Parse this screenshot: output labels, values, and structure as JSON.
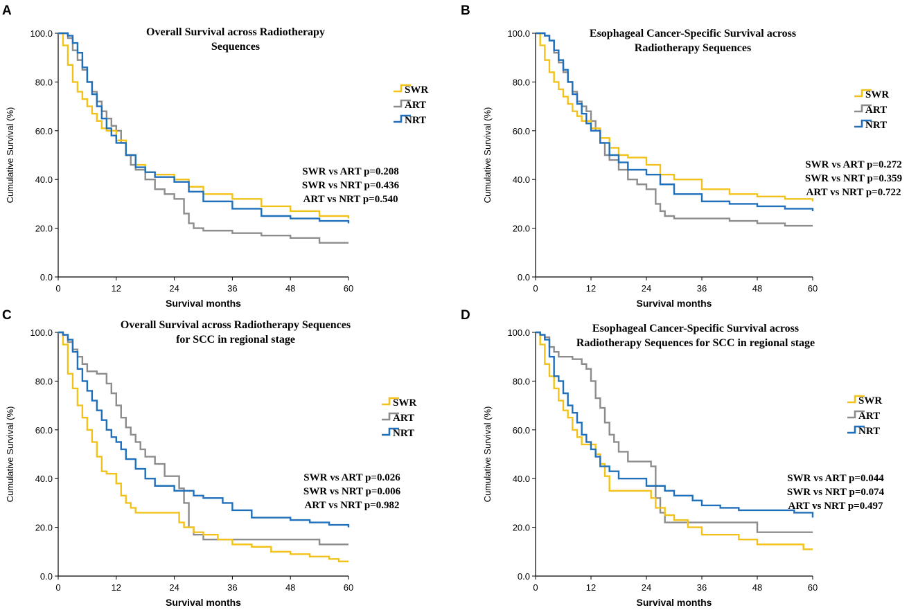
{
  "colors": {
    "SWR": "#f2c21b",
    "ART": "#8c8c8c",
    "NRT": "#1f6fba",
    "axis": "#000000"
  },
  "chart_data": [
    {
      "type": "line",
      "panel": "A",
      "title_lines": [
        "Overall Survival across Radiotherapy",
        "Sequences"
      ],
      "xlabel": "Survival months",
      "ylabel": "Cumulative Survival (%)",
      "xlim": [
        0,
        60
      ],
      "ylim": [
        0,
        100
      ],
      "xticks": [
        "0",
        "12",
        "24",
        "36",
        "48",
        "60"
      ],
      "yticks": [
        "0.0",
        "20.0",
        "40.0",
        "60.0",
        "80.0",
        "100.0"
      ],
      "legend": [
        "SWR",
        "ART",
        "NRT"
      ],
      "pvalues": [
        "SWR vs ART p=0.208",
        "SWR vs NRT p=0.436",
        "ART vs NRT p=0.540"
      ],
      "series": [
        {
          "name": "SWR",
          "x": [
            0,
            1,
            2,
            3,
            4,
            5,
            6,
            7,
            8,
            9,
            10,
            12,
            14,
            16,
            18,
            20,
            24,
            27,
            30,
            36,
            42,
            48,
            54,
            60
          ],
          "y": [
            100,
            95,
            87,
            80,
            76,
            73,
            70,
            67,
            64,
            61,
            60,
            56,
            50,
            46,
            43,
            42,
            40,
            37,
            34,
            32,
            29,
            27,
            25,
            24
          ]
        },
        {
          "name": "ART",
          "x": [
            0,
            1,
            2,
            3,
            4,
            5,
            6,
            7,
            8,
            9,
            10,
            11,
            12,
            13,
            14,
            15,
            16,
            18,
            20,
            22,
            24,
            26,
            27,
            28,
            30,
            36,
            42,
            48,
            54,
            60
          ],
          "y": [
            100,
            100,
            98,
            93,
            89,
            85,
            80,
            76,
            72,
            68,
            65,
            62,
            60,
            55,
            50,
            46,
            44,
            40,
            36,
            34,
            32,
            26,
            22,
            20,
            19,
            18,
            17,
            16,
            14,
            14
          ]
        },
        {
          "name": "NRT",
          "x": [
            0,
            1,
            2,
            3,
            4,
            5,
            6,
            7,
            8,
            9,
            10,
            11,
            12,
            14,
            16,
            18,
            20,
            24,
            27,
            30,
            36,
            42,
            48,
            54,
            60
          ],
          "y": [
            100,
            100,
            99,
            96,
            92,
            86,
            80,
            75,
            70,
            65,
            61,
            58,
            55,
            50,
            45,
            43,
            41,
            39,
            35,
            31,
            28,
            25,
            24,
            23,
            22
          ]
        }
      ]
    },
    {
      "type": "line",
      "panel": "B",
      "title_lines": [
        "Esophageal Cancer-Specific Survival across",
        "Radiotherapy Sequences"
      ],
      "xlabel": "Survival months",
      "ylabel": "Cumulative Survival (%)",
      "xlim": [
        0,
        60
      ],
      "ylim": [
        0,
        100
      ],
      "xticks": [
        "0",
        "12",
        "24",
        "36",
        "48",
        "60"
      ],
      "yticks": [
        "0.0",
        "20.0",
        "40.0",
        "60.0",
        "80.0",
        "100.0"
      ],
      "legend": [
        "SWR",
        "ART",
        "NRT"
      ],
      "pvalues": [
        "SWR vs ART p=0.272",
        "SWR vs NRT p=0.359",
        "ART vs NRT p=0.722"
      ],
      "series": [
        {
          "name": "SWR",
          "x": [
            0,
            1,
            2,
            3,
            4,
            5,
            6,
            7,
            8,
            9,
            10,
            12,
            14,
            16,
            18,
            20,
            24,
            27,
            30,
            36,
            42,
            48,
            54,
            60
          ],
          "y": [
            100,
            95,
            89,
            84,
            80,
            77,
            74,
            71,
            68,
            66,
            64,
            61,
            57,
            53,
            50,
            49,
            46,
            42,
            40,
            36,
            34,
            33,
            32,
            31
          ]
        },
        {
          "name": "ART",
          "x": [
            0,
            1,
            2,
            3,
            4,
            5,
            6,
            7,
            8,
            9,
            10,
            11,
            12,
            13,
            14,
            15,
            16,
            18,
            20,
            22,
            24,
            26,
            27,
            28,
            30,
            36,
            42,
            48,
            54,
            60
          ],
          "y": [
            100,
            100,
            99,
            97,
            92,
            88,
            84,
            80,
            76,
            72,
            70,
            68,
            64,
            60,
            55,
            50,
            48,
            44,
            40,
            38,
            36,
            30,
            27,
            25,
            24,
            24,
            23,
            22,
            21,
            21
          ]
        },
        {
          "name": "NRT",
          "x": [
            0,
            1,
            2,
            3,
            4,
            5,
            6,
            7,
            8,
            9,
            10,
            11,
            12,
            14,
            16,
            18,
            20,
            24,
            27,
            30,
            36,
            42,
            48,
            54,
            60
          ],
          "y": [
            100,
            100,
            99,
            97,
            93,
            89,
            85,
            80,
            75,
            71,
            67,
            63,
            60,
            55,
            50,
            47,
            44,
            42,
            38,
            34,
            31,
            30,
            29,
            28,
            27
          ]
        }
      ]
    },
    {
      "type": "line",
      "panel": "C",
      "title_lines": [
        "Overall Survival across Radiotherapy Sequences",
        "for SCC in regional stage"
      ],
      "xlabel": "Survival months",
      "ylabel": "Cumulative Survival (%)",
      "xlim": [
        0,
        60
      ],
      "ylim": [
        0,
        100
      ],
      "xticks": [
        "0",
        "12",
        "24",
        "36",
        "48",
        "60"
      ],
      "yticks": [
        "0.0",
        "20.0",
        "40.0",
        "60.0",
        "80.0",
        "100.0"
      ],
      "legend": [
        "SWR",
        "ART",
        "NRT"
      ],
      "pvalues": [
        "SWR vs ART p=0.026",
        "SWR vs NRT p=0.006",
        "ART vs NRT p=0.982"
      ],
      "series": [
        {
          "name": "SWR",
          "x": [
            0,
            1,
            2,
            3,
            4,
            5,
            6,
            7,
            8,
            9,
            10,
            12,
            13,
            14,
            15,
            16,
            18,
            22,
            24,
            25,
            26,
            28,
            30,
            33,
            36,
            40,
            44,
            48,
            52,
            56,
            58,
            60
          ],
          "y": [
            100,
            95,
            83,
            77,
            70,
            65,
            60,
            55,
            49,
            43,
            42,
            38,
            33,
            30,
            28,
            26,
            26,
            26,
            26,
            22,
            20,
            18,
            17,
            15,
            13,
            12,
            10,
            9,
            8,
            7,
            6,
            6
          ]
        },
        {
          "name": "ART",
          "x": [
            0,
            1,
            2,
            3,
            4,
            5,
            6,
            8,
            10,
            11,
            12,
            13,
            14,
            15,
            16,
            17,
            18,
            20,
            22,
            25,
            26,
            27,
            28,
            30,
            36,
            42,
            48,
            54,
            60
          ],
          "y": [
            100,
            99,
            96,
            93,
            90,
            87,
            84,
            83,
            79,
            75,
            70,
            65,
            61,
            58,
            55,
            52,
            49,
            46,
            41,
            36,
            30,
            20,
            17,
            15,
            15,
            15,
            15,
            13,
            13
          ]
        },
        {
          "name": "NRT",
          "x": [
            0,
            1,
            2,
            3,
            4,
            5,
            6,
            7,
            8,
            9,
            10,
            11,
            12,
            13,
            14,
            16,
            18,
            20,
            24,
            28,
            30,
            34,
            36,
            40,
            44,
            48,
            52,
            56,
            60
          ],
          "y": [
            100,
            99,
            97,
            92,
            85,
            80,
            76,
            72,
            68,
            64,
            60,
            57,
            55,
            52,
            48,
            44,
            40,
            37,
            35,
            33,
            32,
            30,
            27,
            24,
            24,
            23,
            22,
            21,
            20
          ]
        }
      ]
    },
    {
      "type": "line",
      "panel": "D",
      "title_lines": [
        "Esophageal Cancer-Specific Survival across",
        "Radiotherapy Sequences for SCC in regional stage"
      ],
      "xlabel": "Survival months",
      "ylabel": "Cumulative Survival (%)",
      "xlim": [
        0,
        60
      ],
      "ylim": [
        0,
        100
      ],
      "xticks": [
        "0",
        "12",
        "24",
        "36",
        "48",
        "60"
      ],
      "yticks": [
        "0.0",
        "20.0",
        "40.0",
        "60.0",
        "80.0",
        "100.0"
      ],
      "legend": [
        "SWR",
        "ART",
        "NRT"
      ],
      "pvalues": [
        "SWR vs ART p=0.044",
        "SWR vs NRT p=0.074",
        "ART vs NRT p=0.497"
      ],
      "series": [
        {
          "name": "SWR",
          "x": [
            0,
            1,
            2,
            3,
            4,
            5,
            6,
            7,
            8,
            9,
            10,
            12,
            13,
            14,
            15,
            16,
            18,
            22,
            24,
            25,
            26,
            28,
            30,
            33,
            36,
            40,
            44,
            48,
            52,
            56,
            58,
            60
          ],
          "y": [
            100,
            95,
            87,
            82,
            77,
            72,
            68,
            65,
            60,
            57,
            54,
            54,
            50,
            46,
            41,
            35,
            35,
            35,
            35,
            32,
            28,
            25,
            23,
            20,
            17,
            17,
            15,
            13,
            13,
            13,
            11,
            11
          ]
        },
        {
          "name": "ART",
          "x": [
            0,
            1,
            2,
            3,
            4,
            5,
            6,
            8,
            10,
            11,
            12,
            13,
            14,
            15,
            16,
            17,
            18,
            20,
            22,
            25,
            26,
            27,
            28,
            30,
            36,
            42,
            48,
            54,
            60
          ],
          "y": [
            100,
            99,
            98,
            94,
            92,
            90,
            90,
            89,
            87,
            85,
            80,
            73,
            69,
            63,
            58,
            55,
            51,
            47,
            47,
            45,
            32,
            26,
            22,
            22,
            22,
            22,
            18,
            18,
            18
          ]
        },
        {
          "name": "NRT",
          "x": [
            0,
            1,
            2,
            3,
            4,
            5,
            6,
            7,
            8,
            9,
            10,
            11,
            12,
            13,
            14,
            16,
            18,
            20,
            24,
            28,
            30,
            34,
            36,
            40,
            44,
            48,
            52,
            56,
            60
          ],
          "y": [
            100,
            99,
            97,
            90,
            82,
            80,
            75,
            70,
            67,
            63,
            58,
            55,
            52,
            49,
            45,
            43,
            40,
            40,
            37,
            35,
            33,
            31,
            29,
            28,
            27,
            27,
            27,
            26,
            24
          ]
        }
      ]
    }
  ]
}
